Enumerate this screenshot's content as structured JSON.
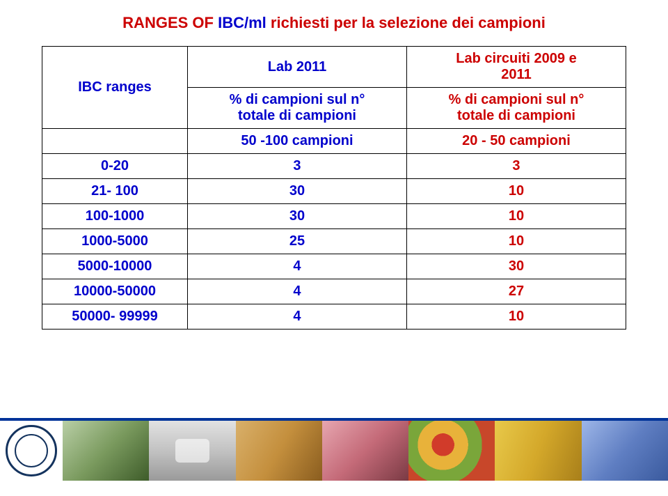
{
  "title_part1": "RANGES OF",
  "title_part2": "IBC/ml",
  "title_part3": "richiesti per la selezione dei campioni",
  "table": {
    "header": {
      "col0": "IBC ranges",
      "col1": "Lab 2011",
      "col2_line1": "Lab circuiti 2009 e",
      "col2_line2": "2011"
    },
    "subheader": {
      "col1_line1": "% di campioni sul n°",
      "col1_line2": "totale di campioni",
      "col2_line1": "% di campioni sul n°",
      "col2_line2": "totale di campioni"
    },
    "sampleheader": {
      "col1": "50 -100 campioni",
      "col2": "20 - 50 campioni"
    },
    "rows": [
      {
        "range": "0-20",
        "v1": "3",
        "v2": "3"
      },
      {
        "range": "21- 100",
        "v1": "30",
        "v2": "10"
      },
      {
        "range": "100-1000",
        "v1": "30",
        "v2": "10"
      },
      {
        "range": "1000-5000",
        "v1": "25",
        "v2": "10"
      },
      {
        "range": "5000-10000",
        "v1": "4",
        "v2": "30"
      },
      {
        "range": "10000-50000",
        "v1": "4",
        "v2": "27"
      },
      {
        "range": "50000- 99999",
        "v1": "4",
        "v2": "10"
      }
    ]
  },
  "style": {
    "red": "#cc0000",
    "blue": "#0000cc",
    "border_color": "#000000",
    "title_fontsize": 22,
    "cell_fontsize": 20,
    "bar_border": "#003399"
  }
}
